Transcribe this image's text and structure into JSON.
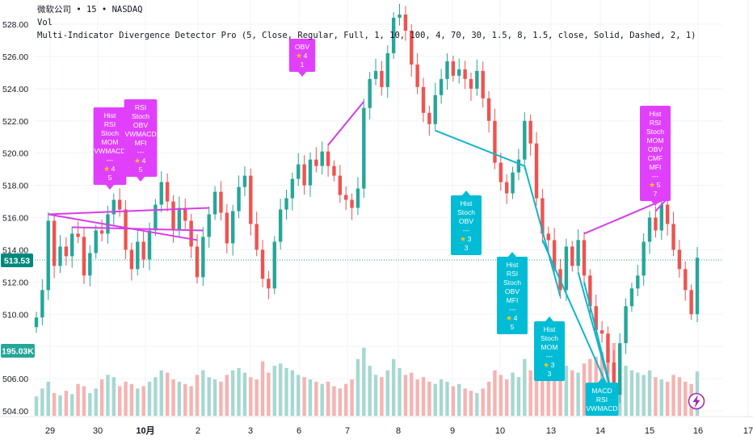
{
  "header": {
    "line1": "微软公司 • 15 • NASDAQ",
    "line2": "Vol",
    "line3": "Multi-Indicator Divergence Detector Pro (5, Close, Regular, Full, 1, 10, 100, 4, 70, 30, 1.5, 8, 1.5, close, Solid, Dashed, 2, 1)"
  },
  "axis": {
    "y_labels": [
      "528.00",
      "526.00",
      "524.00",
      "522.00",
      "520.00",
      "518.00",
      "516.00",
      "514.00",
      "512.00",
      "510.00",
      "508.00",
      "506.00",
      "504.00"
    ],
    "x_labels": [
      "29",
      "30",
      "10月",
      "2",
      "3",
      "6",
      "7",
      "8",
      "9",
      "10",
      "13",
      "14",
      "15",
      "16",
      "17"
    ],
    "current_price": "513.53",
    "current_volume": "195.03K"
  },
  "colors": {
    "up": "#26a69a",
    "down": "#ef5350",
    "bull_label": "#00bcd4",
    "bear_label": "#e040fb",
    "bear_line": "#d63de8",
    "bull_line": "#10b5c9",
    "price_badge": "#00897b",
    "volume_badge": "#26a69a"
  },
  "chart_data": {
    "type": "candlestick",
    "symbol": "微软公司",
    "interval": "15",
    "exchange": "NASDAQ",
    "y_range": [
      503.5,
      529.0
    ],
    "closes": [
      509.8,
      511.5,
      515.8,
      513.0,
      514.2,
      513.6,
      515.0,
      514.8,
      512.4,
      513.8,
      515.2,
      515.0,
      516.2,
      517.1,
      516.5,
      514.0,
      512.8,
      514.5,
      513.4,
      515.2,
      516.8,
      518.2,
      517.0,
      515.2,
      516.6,
      515.8,
      514.2,
      512.3,
      514.8,
      516.2,
      517.6,
      516.3,
      514.4,
      516.4,
      517.9,
      518.6,
      515.6,
      514.0,
      512.2,
      511.6,
      514.5,
      516.5,
      517.2,
      518.4,
      519.3,
      518.0,
      519.6,
      519.2,
      520.1,
      519.2,
      518.6,
      517.4,
      517.1,
      516.6,
      517.8,
      522.8,
      524.6,
      525.1,
      524.1,
      526.2,
      528.4,
      528.6,
      527.6,
      525.5,
      524.1,
      522.5,
      521.8,
      523.6,
      524.6,
      525.7,
      524.8,
      525.2,
      524.6,
      524.0,
      525.1,
      523.4,
      522.0,
      519.4,
      518.2,
      517.5,
      518.8,
      519.6,
      522.0,
      520.6,
      517.2,
      515.0,
      514.6,
      512.8,
      511.5,
      514.2,
      513.0,
      514.6,
      512.4,
      510.5,
      509.0,
      508.8,
      507.0,
      505.0,
      508.2,
      510.5,
      511.6,
      512.4,
      514.5,
      516.0,
      515.2,
      516.8,
      515.6,
      514.0,
      512.8,
      511.5,
      510.0,
      513.5
    ],
    "volume_k": [
      85,
      120,
      150,
      100,
      90,
      110,
      95,
      140,
      130,
      100,
      120,
      160,
      180,
      170,
      130,
      150,
      140,
      120,
      130,
      150,
      170,
      200,
      190,
      160,
      150,
      140,
      130,
      180,
      200,
      170,
      160,
      150,
      180,
      200,
      210,
      190,
      170,
      160,
      240,
      190,
      220,
      230,
      210,
      200,
      180,
      170,
      160,
      150,
      140,
      150,
      130,
      120,
      140,
      160,
      250,
      300,
      220,
      180,
      170,
      200,
      250,
      210,
      180,
      190,
      160,
      170,
      150,
      140,
      160,
      150,
      130,
      140,
      120,
      110,
      100,
      120,
      150,
      200,
      180,
      160,
      190,
      170,
      250,
      200,
      230,
      260,
      200,
      190,
      180,
      220,
      200,
      190,
      230,
      250,
      260,
      280,
      300,
      320,
      240,
      220,
      200,
      190,
      180,
      200,
      170,
      160,
      150,
      180,
      170,
      150,
      140,
      195
    ],
    "divergence_labels": [
      {
        "type": "bearish",
        "lines": [
          "Hist",
          "RSI",
          "Stoch",
          "MOM",
          "VWMACD",
          "---"
        ],
        "star": "4",
        "count": "5"
      },
      {
        "type": "bearish",
        "lines": [
          "RSI",
          "Stoch",
          "OBV",
          "VWMACD",
          "MFI",
          "---"
        ],
        "star": "4",
        "count": "5"
      },
      {
        "type": "bearish",
        "lines": [
          "OBV"
        ],
        "star": "4",
        "count": "1"
      },
      {
        "type": "bullish",
        "lines": [
          "Hist",
          "Stoch",
          "OBV",
          "---"
        ],
        "star": "3",
        "count": "3"
      },
      {
        "type": "bullish",
        "lines": [
          "Hist",
          "RSI",
          "Stoch",
          "OBV",
          "MFI",
          "---"
        ],
        "star": "4",
        "count": "5"
      },
      {
        "type": "bullish",
        "lines": [
          "Hist",
          "Stoch",
          "MOM",
          "---"
        ],
        "star": "3",
        "count": "3"
      },
      {
        "type": "bullish",
        "lines": [
          "MACD",
          "RSI",
          "VWMACD"
        ],
        "star": "",
        "count": ""
      },
      {
        "type": "bearish",
        "lines": [
          "Hist",
          "RSI",
          "Stoch",
          "MOM",
          "OBV",
          "CMF",
          "MFI",
          "---"
        ],
        "star": "5",
        "count": "7"
      }
    ]
  }
}
